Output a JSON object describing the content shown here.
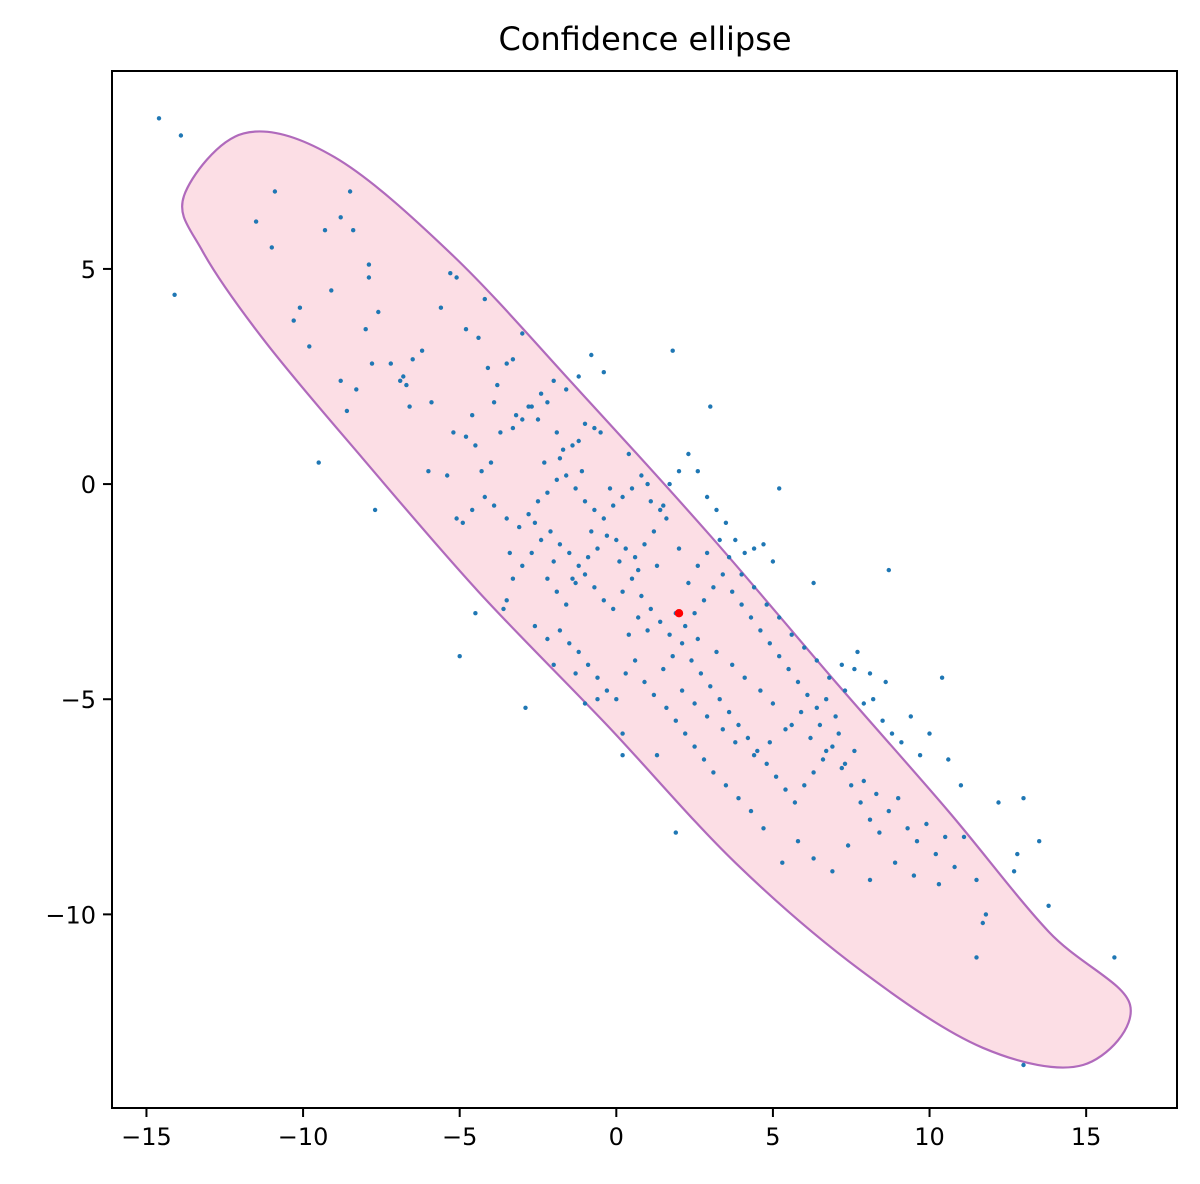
{
  "chart_data": {
    "type": "scatter",
    "title": "Confidence ellipse",
    "xlabel": "",
    "ylabel": "",
    "xlim": [
      -16.1,
      17.9
    ],
    "ylim": [
      -14.5,
      9.6
    ],
    "xticks": [
      -15,
      -10,
      -5,
      0,
      5,
      10,
      15
    ],
    "yticks": [
      5,
      0,
      -5,
      -10
    ],
    "tick_labels_x": [
      "−15",
      "−10",
      "−5",
      "0",
      "5",
      "10",
      "15"
    ],
    "tick_labels_y": [
      "5",
      "0",
      "−5",
      "−10"
    ],
    "grid": false,
    "colors": {
      "points": "#1f77b4",
      "mean": "#ff0000",
      "ellipse_fill": "#fbd0da",
      "ellipse_edge": "#b06abc"
    },
    "mean": [
      2.0,
      -3.0
    ],
    "ellipse_outline": [
      [
        -13.8,
        6.7
      ],
      [
        -11.9,
        8.15
      ],
      [
        -9.0,
        7.6
      ],
      [
        -5.2,
        5.3
      ],
      [
        -1.1,
        2.1
      ],
      [
        3.0,
        -1.2
      ],
      [
        7.0,
        -4.6
      ],
      [
        10.6,
        -7.6
      ],
      [
        13.8,
        -10.4
      ],
      [
        16.4,
        -12.1
      ],
      [
        14.9,
        -13.5
      ],
      [
        11.7,
        -13.1
      ],
      [
        7.8,
        -11.3
      ],
      [
        3.8,
        -8.8
      ],
      [
        -0.3,
        -5.6
      ],
      [
        -4.4,
        -2.5
      ],
      [
        -8.1,
        0.6
      ],
      [
        -11.2,
        3.3
      ],
      [
        -13.2,
        5.4
      ]
    ],
    "points": [
      [
        -14.6,
        8.5
      ],
      [
        -13.9,
        8.1
      ],
      [
        -14.1,
        4.4
      ],
      [
        -11.5,
        6.1
      ],
      [
        -10.9,
        6.8
      ],
      [
        -11.0,
        5.5
      ],
      [
        -9.3,
        5.9
      ],
      [
        -8.8,
        6.2
      ],
      [
        -8.5,
        6.8
      ],
      [
        -8.4,
        5.9
      ],
      [
        -7.9,
        5.1
      ],
      [
        -7.9,
        4.8
      ],
      [
        -9.1,
        4.5
      ],
      [
        -10.1,
        4.1
      ],
      [
        -10.3,
        3.8
      ],
      [
        -9.8,
        3.2
      ],
      [
        -8.0,
        3.6
      ],
      [
        -7.6,
        4.0
      ],
      [
        -7.2,
        2.8
      ],
      [
        -6.9,
        2.4
      ],
      [
        -6.7,
        2.3
      ],
      [
        -8.6,
        1.7
      ],
      [
        -8.8,
        2.4
      ],
      [
        -8.3,
        2.2
      ],
      [
        -7.8,
        2.8
      ],
      [
        -9.5,
        0.5
      ],
      [
        -7.7,
        -0.6
      ],
      [
        -6.6,
        1.8
      ],
      [
        -6.5,
        2.9
      ],
      [
        -6.2,
        3.1
      ],
      [
        -5.6,
        4.1
      ],
      [
        -5.3,
        4.9
      ],
      [
        -5.1,
        4.8
      ],
      [
        -4.8,
        3.6
      ],
      [
        -4.4,
        3.4
      ],
      [
        -4.1,
        2.7
      ],
      [
        -3.8,
        2.3
      ],
      [
        -3.5,
        2.8
      ],
      [
        -3.3,
        2.9
      ],
      [
        -3.0,
        3.5
      ],
      [
        -4.2,
        4.3
      ],
      [
        -4.8,
        1.1
      ],
      [
        -4.5,
        0.9
      ],
      [
        -4.3,
        0.3
      ],
      [
        -4.0,
        0.5
      ],
      [
        -3.7,
        1.2
      ],
      [
        -3.3,
        1.3
      ],
      [
        -3.0,
        1.5
      ],
      [
        -2.7,
        1.8
      ],
      [
        -2.5,
        1.5
      ],
      [
        -2.2,
        1.9
      ],
      [
        -1.9,
        1.2
      ],
      [
        -1.7,
        0.8
      ],
      [
        -1.4,
        0.9
      ],
      [
        -1.2,
        1.0
      ],
      [
        -1.0,
        1.4
      ],
      [
        -0.7,
        1.3
      ],
      [
        -0.5,
        1.2
      ],
      [
        -0.4,
        2.6
      ],
      [
        -0.8,
        3.0
      ],
      [
        -1.2,
        2.5
      ],
      [
        -1.6,
        2.2
      ],
      [
        -2.0,
        2.4
      ],
      [
        -2.4,
        2.1
      ],
      [
        -2.8,
        1.8
      ],
      [
        -3.2,
        1.6
      ],
      [
        -5.4,
        0.2
      ],
      [
        -5.1,
        -0.8
      ],
      [
        -4.9,
        -0.9
      ],
      [
        -4.6,
        -0.6
      ],
      [
        -4.2,
        -0.3
      ],
      [
        -3.9,
        -0.5
      ],
      [
        -3.5,
        -0.8
      ],
      [
        -3.1,
        -1.0
      ],
      [
        -2.8,
        -0.7
      ],
      [
        -2.5,
        -0.4
      ],
      [
        -2.2,
        -0.2
      ],
      [
        -1.9,
        0.1
      ],
      [
        -1.6,
        0.2
      ],
      [
        -1.3,
        -0.1
      ],
      [
        -1.0,
        -0.4
      ],
      [
        -0.7,
        -0.6
      ],
      [
        -0.4,
        -0.8
      ],
      [
        -0.1,
        -0.5
      ],
      [
        0.2,
        -0.3
      ],
      [
        0.5,
        -0.1
      ],
      [
        0.8,
        0.2
      ],
      [
        1.1,
        -0.4
      ],
      [
        1.4,
        -0.6
      ],
      [
        1.7,
        0.0
      ],
      [
        2.0,
        0.3
      ],
      [
        2.3,
        0.7
      ],
      [
        2.6,
        0.3
      ],
      [
        2.9,
        -0.3
      ],
      [
        3.2,
        -0.6
      ],
      [
        3.5,
        -0.9
      ],
      [
        3.8,
        -1.3
      ],
      [
        4.1,
        -1.6
      ],
      [
        4.4,
        -1.5
      ],
      [
        4.7,
        -1.4
      ],
      [
        5.0,
        -1.8
      ],
      [
        5.2,
        -0.1
      ],
      [
        6.3,
        -2.3
      ],
      [
        8.7,
        -2.0
      ],
      [
        1.8,
        3.1
      ],
      [
        3.0,
        1.8
      ],
      [
        1.6,
        -0.8
      ],
      [
        1.2,
        -1.1
      ],
      [
        0.9,
        -1.4
      ],
      [
        0.6,
        -1.7
      ],
      [
        0.3,
        -1.5
      ],
      [
        0.0,
        -1.3
      ],
      [
        -0.3,
        -1.2
      ],
      [
        -0.6,
        -1.5
      ],
      [
        -0.9,
        -1.7
      ],
      [
        -1.2,
        -1.9
      ],
      [
        -1.5,
        -1.6
      ],
      [
        -1.8,
        -1.4
      ],
      [
        -2.1,
        -1.1
      ],
      [
        -2.4,
        -1.3
      ],
      [
        -2.7,
        -1.6
      ],
      [
        -3.0,
        -1.9
      ],
      [
        -3.3,
        -2.2
      ],
      [
        -3.5,
        -2.7
      ],
      [
        -3.6,
        -2.9
      ],
      [
        -4.5,
        -3.0
      ],
      [
        -5.0,
        -4.0
      ],
      [
        -2.9,
        -5.2
      ],
      [
        -2.2,
        -2.2
      ],
      [
        -1.9,
        -2.5
      ],
      [
        -1.6,
        -2.8
      ],
      [
        -1.3,
        -2.3
      ],
      [
        -1.0,
        -2.1
      ],
      [
        -0.7,
        -2.4
      ],
      [
        -0.4,
        -2.7
      ],
      [
        -0.1,
        -2.9
      ],
      [
        0.2,
        -2.5
      ],
      [
        0.5,
        -2.2
      ],
      [
        0.8,
        -2.6
      ],
      [
        1.1,
        -2.9
      ],
      [
        1.4,
        -3.2
      ],
      [
        1.7,
        -3.5
      ],
      [
        2.2,
        -3.3
      ],
      [
        2.5,
        -3.0
      ],
      [
        2.8,
        -2.7
      ],
      [
        3.1,
        -2.4
      ],
      [
        3.4,
        -2.1
      ],
      [
        3.7,
        -2.5
      ],
      [
        4.0,
        -2.8
      ],
      [
        4.3,
        -3.1
      ],
      [
        4.6,
        -3.4
      ],
      [
        4.9,
        -3.7
      ],
      [
        5.2,
        -4.0
      ],
      [
        5.5,
        -4.3
      ],
      [
        5.8,
        -4.6
      ],
      [
        6.1,
        -4.9
      ],
      [
        6.4,
        -5.2
      ],
      [
        6.7,
        -5.0
      ],
      [
        7.0,
        -5.4
      ],
      [
        7.3,
        -4.8
      ],
      [
        7.6,
        -4.3
      ],
      [
        7.9,
        -5.1
      ],
      [
        8.2,
        -5.0
      ],
      [
        8.5,
        -5.5
      ],
      [
        8.8,
        -5.8
      ],
      [
        9.1,
        -6.0
      ],
      [
        9.4,
        -5.4
      ],
      [
        9.7,
        -6.3
      ],
      [
        10.0,
        -5.8
      ],
      [
        10.4,
        -4.5
      ],
      [
        10.6,
        -6.4
      ],
      [
        11.0,
        -7.0
      ],
      [
        -1.8,
        -3.4
      ],
      [
        -1.5,
        -3.7
      ],
      [
        -1.2,
        -3.9
      ],
      [
        -0.9,
        -4.2
      ],
      [
        -0.6,
        -4.5
      ],
      [
        -0.3,
        -4.8
      ],
      [
        0.0,
        -5.0
      ],
      [
        0.3,
        -4.4
      ],
      [
        0.6,
        -4.1
      ],
      [
        0.9,
        -4.6
      ],
      [
        1.2,
        -4.9
      ],
      [
        1.5,
        -4.3
      ],
      [
        1.8,
        -4.0
      ],
      [
        2.1,
        -3.7
      ],
      [
        2.4,
        -4.1
      ],
      [
        2.7,
        -4.4
      ],
      [
        3.0,
        -4.7
      ],
      [
        3.3,
        -5.0
      ],
      [
        3.6,
        -5.3
      ],
      [
        3.9,
        -5.6
      ],
      [
        4.2,
        -5.9
      ],
      [
        4.5,
        -6.2
      ],
      [
        4.8,
        -6.5
      ],
      [
        5.1,
        -6.8
      ],
      [
        5.4,
        -7.1
      ],
      [
        5.7,
        -7.4
      ],
      [
        6.0,
        -7.0
      ],
      [
        6.3,
        -6.7
      ],
      [
        6.6,
        -6.4
      ],
      [
        6.9,
        -6.1
      ],
      [
        7.2,
        -6.6
      ],
      [
        7.5,
        -7.0
      ],
      [
        7.8,
        -7.4
      ],
      [
        8.1,
        -7.8
      ],
      [
        8.4,
        -8.1
      ],
      [
        8.7,
        -7.6
      ],
      [
        9.0,
        -7.3
      ],
      [
        9.3,
        -8.0
      ],
      [
        9.6,
        -8.3
      ],
      [
        9.9,
        -7.9
      ],
      [
        10.2,
        -8.6
      ],
      [
        10.5,
        -8.2
      ],
      [
        10.8,
        -8.9
      ],
      [
        11.1,
        -8.2
      ],
      [
        11.5,
        -9.2
      ],
      [
        12.2,
        -7.4
      ],
      [
        12.8,
        -8.6
      ],
      [
        13.0,
        -7.3
      ],
      [
        13.5,
        -8.3
      ],
      [
        13.8,
        -9.8
      ],
      [
        12.7,
        -9.0
      ],
      [
        11.8,
        -10.0
      ],
      [
        11.7,
        -10.2
      ],
      [
        11.5,
        -11.0
      ],
      [
        15.9,
        -11.0
      ],
      [
        13.0,
        -13.5
      ],
      [
        10.3,
        -9.3
      ],
      [
        9.5,
        -9.1
      ],
      [
        8.9,
        -8.8
      ],
      [
        8.1,
        -9.2
      ],
      [
        7.4,
        -8.4
      ],
      [
        6.9,
        -9.0
      ],
      [
        6.3,
        -8.7
      ],
      [
        5.8,
        -8.3
      ],
      [
        5.3,
        -8.8
      ],
      [
        4.7,
        -8.0
      ],
      [
        4.3,
        -7.6
      ],
      [
        3.9,
        -7.3
      ],
      [
        3.5,
        -7.0
      ],
      [
        3.1,
        -6.7
      ],
      [
        2.8,
        -6.4
      ],
      [
        2.5,
        -6.1
      ],
      [
        2.2,
        -5.8
      ],
      [
        1.9,
        -5.5
      ],
      [
        1.6,
        -5.2
      ],
      [
        1.3,
        -6.3
      ],
      [
        1.9,
        -8.1
      ],
      [
        0.2,
        -6.3
      ],
      [
        0.2,
        -5.8
      ],
      [
        -0.6,
        -5.0
      ],
      [
        -1.0,
        -5.1
      ],
      [
        -1.3,
        -4.4
      ],
      [
        -2.0,
        -4.2
      ],
      [
        -2.2,
        -3.6
      ],
      [
        -2.6,
        -3.3
      ],
      [
        1.0,
        -3.4
      ],
      [
        0.7,
        -3.1
      ],
      [
        0.4,
        -3.5
      ],
      [
        1.9,
        -3.0
      ],
      [
        2.3,
        -2.3
      ],
      [
        2.6,
        -1.9
      ],
      [
        2.9,
        -1.6
      ],
      [
        3.3,
        -1.3
      ],
      [
        3.6,
        -1.7
      ],
      [
        4.0,
        -2.1
      ],
      [
        4.4,
        -2.4
      ],
      [
        4.8,
        -2.8
      ],
      [
        5.2,
        -3.1
      ],
      [
        5.6,
        -3.5
      ],
      [
        6.0,
        -3.8
      ],
      [
        6.4,
        -4.1
      ],
      [
        6.8,
        -4.5
      ],
      [
        7.2,
        -4.2
      ],
      [
        7.7,
        -3.9
      ],
      [
        8.1,
        -4.4
      ],
      [
        8.6,
        -4.6
      ],
      [
        7.6,
        -6.2
      ],
      [
        7.1,
        -5.8
      ],
      [
        6.5,
        -5.6
      ],
      [
        5.9,
        -5.3
      ],
      [
        5.4,
        -5.7
      ],
      [
        4.9,
        -6.0
      ],
      [
        4.4,
        -6.3
      ],
      [
        3.8,
        -6.0
      ],
      [
        3.4,
        -5.7
      ],
      [
        2.9,
        -5.4
      ],
      [
        2.5,
        -5.1
      ],
      [
        2.1,
        -4.8
      ],
      [
        2.6,
        -3.6
      ],
      [
        3.2,
        -3.9
      ],
      [
        3.7,
        -4.2
      ],
      [
        4.1,
        -4.5
      ],
      [
        4.6,
        -4.8
      ],
      [
        5.0,
        -5.1
      ],
      [
        5.6,
        -5.6
      ],
      [
        6.2,
        -5.9
      ],
      [
        6.7,
        -6.2
      ],
      [
        7.3,
        -6.5
      ],
      [
        7.9,
        -6.9
      ],
      [
        8.3,
        -7.2
      ],
      [
        -6.0,
        0.3
      ],
      [
        -6.8,
        2.5
      ],
      [
        -5.9,
        1.9
      ],
      [
        -5.2,
        1.2
      ],
      [
        -4.6,
        1.6
      ],
      [
        -3.9,
        1.9
      ],
      [
        -2.3,
        0.5
      ],
      [
        -1.8,
        0.6
      ],
      [
        -1.1,
        0.3
      ],
      [
        -0.2,
        -0.1
      ],
      [
        0.4,
        0.7
      ],
      [
        1.0,
        0.0
      ],
      [
        1.5,
        -0.5
      ],
      [
        -2.6,
        -0.9
      ],
      [
        -3.4,
        -1.6
      ],
      [
        -2.0,
        -1.8
      ],
      [
        -1.4,
        -2.2
      ],
      [
        -0.8,
        -1.1
      ],
      [
        0.1,
        -1.8
      ],
      [
        0.7,
        -2.0
      ],
      [
        1.3,
        -1.9
      ],
      [
        2.0,
        -1.5
      ]
    ]
  }
}
